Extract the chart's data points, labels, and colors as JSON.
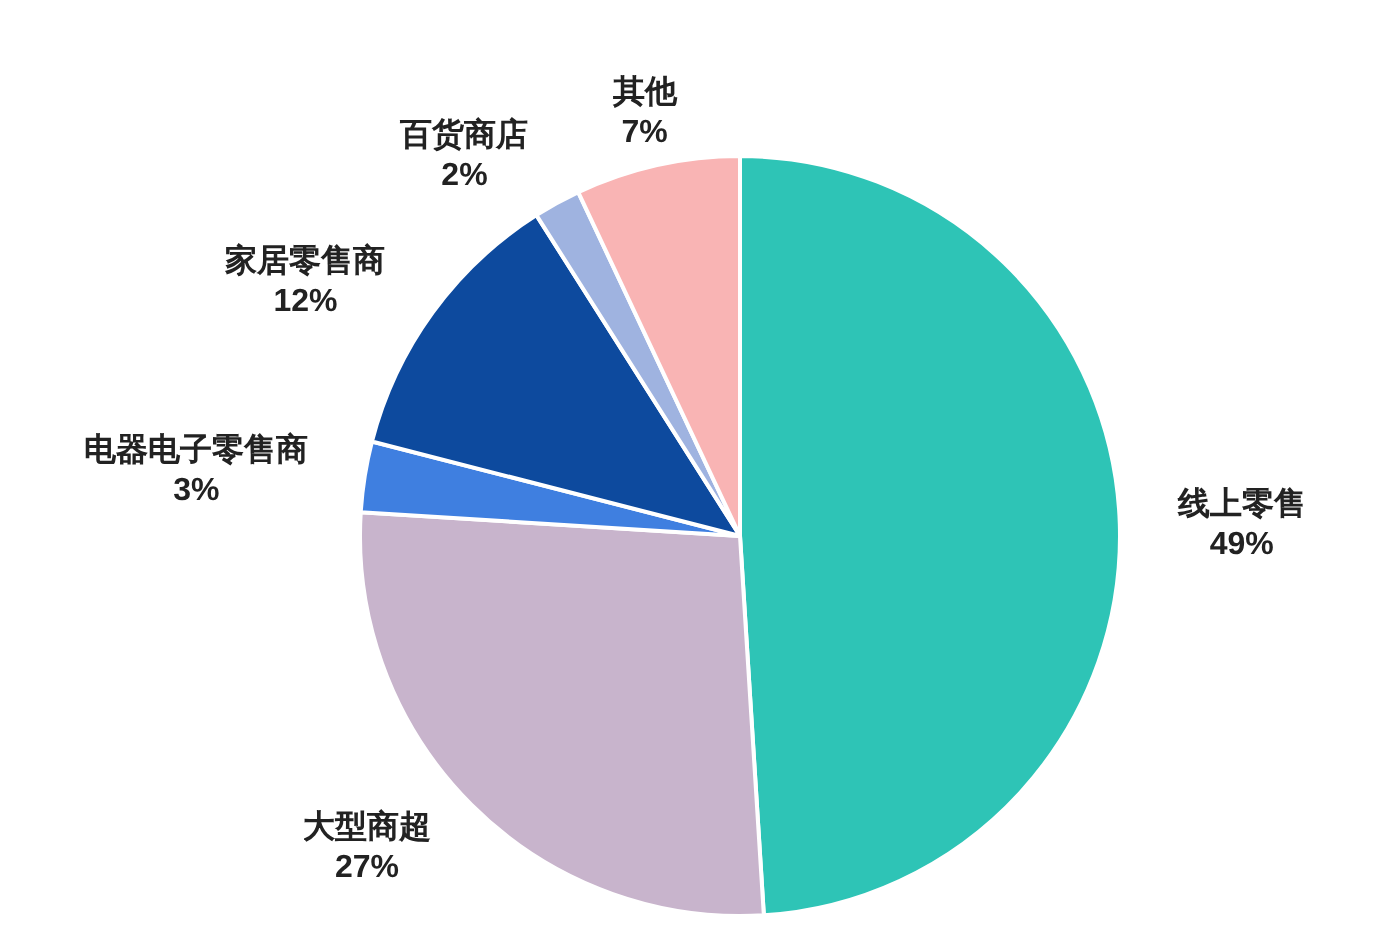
{
  "chart_data": {
    "type": "pie",
    "categories": [
      "线上零售",
      "大型商超",
      "电器电子零售商",
      "家居零售商",
      "百货商店",
      "其他"
    ],
    "values": [
      49,
      27,
      3,
      12,
      2,
      7
    ],
    "value_labels": [
      "49%",
      "27%",
      "3%",
      "12%",
      "2%",
      "7%"
    ],
    "colors": [
      "#2ec4b6",
      "#c8b4cc",
      "#3f7fe0",
      "#0d4a9e",
      "#9fb3e0",
      "#f9b4b4"
    ]
  }
}
